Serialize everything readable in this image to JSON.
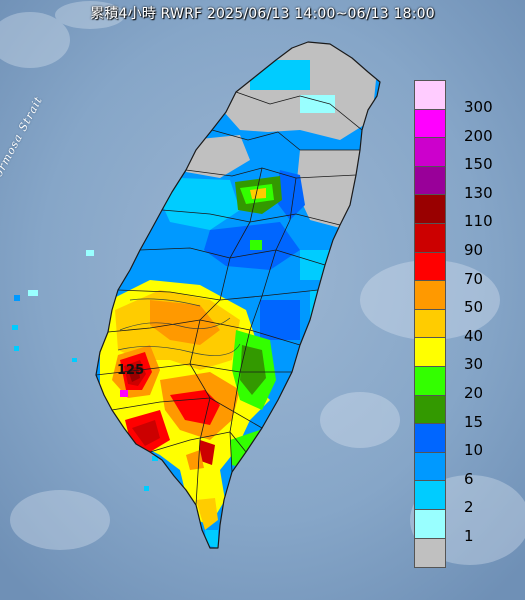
{
  "title": "累積4小時 RWRF 2025/06/13 14:00~06/13 18:00",
  "map_labels": {
    "strait": "Formosa Strait",
    "peak_value": "125"
  },
  "legend": {
    "items": [
      {
        "label": "300",
        "color": "#ffccff"
      },
      {
        "label": "200",
        "color": "#ff00ff"
      },
      {
        "label": "150",
        "color": "#cc00cc"
      },
      {
        "label": "130",
        "color": "#990099"
      },
      {
        "label": "110",
        "color": "#990000"
      },
      {
        "label": "90",
        "color": "#cc0000"
      },
      {
        "label": "70",
        "color": "#ff0000"
      },
      {
        "label": "50",
        "color": "#ff9900"
      },
      {
        "label": "40",
        "color": "#ffcc00"
      },
      {
        "label": "30",
        "color": "#ffff00"
      },
      {
        "label": "20",
        "color": "#33ff00"
      },
      {
        "label": "15",
        "color": "#339900"
      },
      {
        "label": "10",
        "color": "#0066ff"
      },
      {
        "label": "6",
        "color": "#0099ff"
      },
      {
        "label": "2",
        "color": "#00ccff"
      },
      {
        "label": "1",
        "color": "#99ffff"
      },
      {
        "label": "",
        "color": "#c0c0c0"
      }
    ]
  }
}
